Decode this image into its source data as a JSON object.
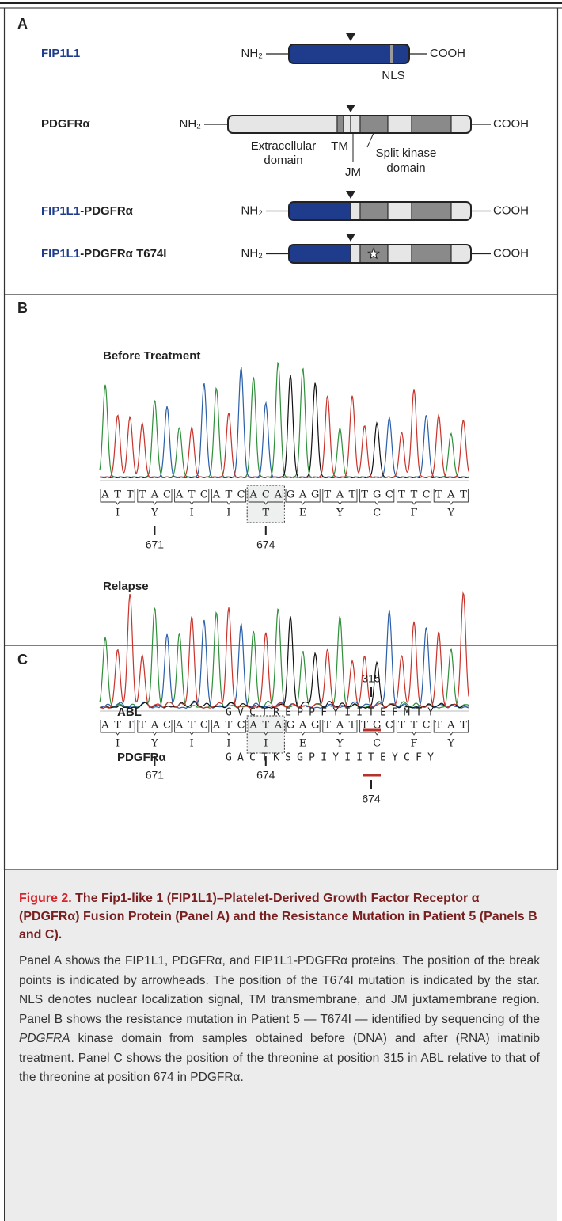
{
  "panel_a": {
    "label": "A",
    "fip1l1": "FIP1L1",
    "pdgfra": "PDGFRα",
    "fusion_suffix": "-PDGFRα",
    "mutant_suffix": "-PDGFRα T674I",
    "nh2": "NH₂",
    "cooh": "COOH",
    "nls": "NLS",
    "extracellular": [
      "Extracellular",
      "domain"
    ],
    "tm": "TM",
    "jm": "JM",
    "kinase": [
      "Split kinase",
      "domain"
    ]
  },
  "panel_b": {
    "label": "B",
    "samples": [
      {
        "title": "Before Treatment",
        "codons": [
          "ATT",
          "TAC",
          "ATC",
          "ATC",
          "ACA",
          "GAG",
          "TAT",
          "TGC",
          "TTC",
          "TAT"
        ],
        "amino_acids": [
          "I",
          "Y",
          "I",
          "I",
          "T",
          "E",
          "Y",
          "C",
          "F",
          "Y"
        ]
      },
      {
        "title": "Relapse",
        "codons": [
          "ATT",
          "TAC",
          "ATC",
          "ATC",
          "ATA",
          "GAG",
          "TAT",
          "TGC",
          "TTC",
          "TAT"
        ],
        "amino_acids": [
          "I",
          "Y",
          "I",
          "I",
          "I",
          "E",
          "Y",
          "C",
          "F",
          "Y"
        ]
      }
    ],
    "positions": [
      671,
      674
    ]
  },
  "panel_c": {
    "label": "C",
    "rows": [
      {
        "name": "ABL",
        "before": "GVCTREPPFYII",
        "mutant": "T",
        "after": "EFMTY",
        "position": 315
      },
      {
        "name": "PDGFRα",
        "before": "GACTKSGPIYII",
        "mutant": "T",
        "after": "EYCFY",
        "position": 674
      }
    ]
  },
  "caption": {
    "figure": "Figure 2.",
    "title": "The Fip1-like 1 (FIP1L1)–Platelet-Derived Growth Factor Receptor α (PDGFRα) Fusion Protein (Panel A) and the Resistance Mutation in Patient 5 (Panels B and C).",
    "body": [
      "Panel A shows the FIP1L1, PDGFRα, and FIP1L1-PDGFRα proteins. The position of the break points is indicated by arrowheads. The position of the T674I mutation is indicated by the star. NLS denotes nuclear localization signal, TM transmembrane, and JM juxtamembrane region. Panel B shows the resistance mutation in Patient 5 — T674I — identified by sequencing of the ",
      "PDGFRA",
      " kinase domain from samples obtained before (DNA) and after (RNA) imatinib treatment. Panel C shows the position of the threonine at position 315 in ABL relative to that of the threonine at position 674 in PDGFRα."
    ]
  }
}
